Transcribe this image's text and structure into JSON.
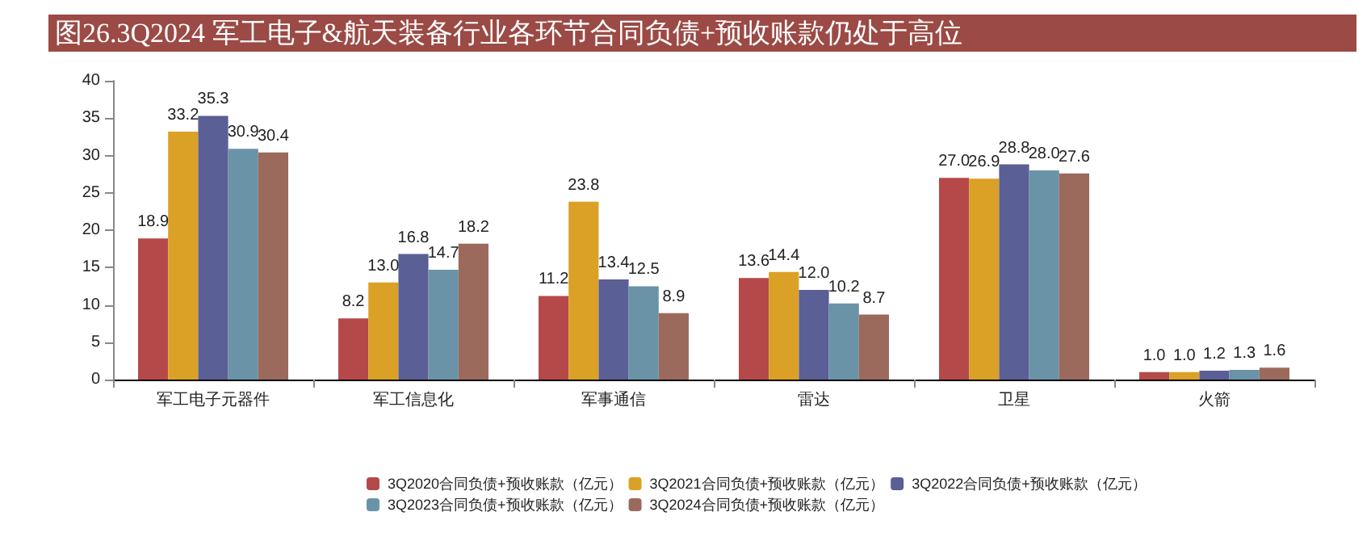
{
  "chart_data": {
    "type": "bar",
    "title": "图26.3Q2024 军工电子&航天装备行业各环节合同负债+预收账款仍处于高位",
    "categories": [
      "军工电子元器件",
      "军工信息化",
      "军事通信",
      "雷达",
      "卫星",
      "火箭"
    ],
    "series": [
      {
        "name": "3Q2020合同负债+预收账款（亿元）",
        "color": "#b5494a",
        "values": [
          18.9,
          8.2,
          11.2,
          13.6,
          27.0,
          1.0
        ],
        "value_labels": [
          "18.9",
          "8.2",
          "11.2",
          "13.6",
          "27.0",
          "1.0"
        ]
      },
      {
        "name": "3Q2021合同负债+预收账款（亿元）",
        "color": "#dba026",
        "values": [
          33.2,
          13.0,
          23.8,
          14.4,
          26.9,
          1.0
        ],
        "value_labels": [
          "33.2",
          "13.0",
          "23.8",
          "14.4",
          "26.9",
          "1.0"
        ]
      },
      {
        "name": "3Q2022合同负债+预收账款（亿元）",
        "color": "#5a5f95",
        "values": [
          35.3,
          16.8,
          13.4,
          12.0,
          28.8,
          1.2
        ],
        "value_labels": [
          "35.3",
          "16.8",
          "13.4",
          "12.0",
          "28.8",
          "1.2"
        ]
      },
      {
        "name": "3Q2023合同负债+预收账款（亿元）",
        "color": "#6a93a8",
        "values": [
          30.9,
          14.7,
          12.5,
          10.2,
          28.0,
          1.3
        ],
        "value_labels": [
          "30.9",
          "14.7",
          "12.5",
          "10.2",
          "28.0",
          "1.3"
        ]
      },
      {
        "name": "3Q2024合同负债+预收账款（亿元）",
        "color": "#9b6a5c",
        "values": [
          30.4,
          18.2,
          8.9,
          8.7,
          27.6,
          1.6
        ],
        "value_labels": [
          "30.4",
          "18.2",
          "8.9",
          "8.7",
          "27.6",
          "1.6"
        ]
      }
    ],
    "ylim": [
      0,
      40
    ],
    "yticks": [
      0,
      5,
      10,
      15,
      20,
      25,
      30,
      35,
      40
    ],
    "grid": false,
    "legend": "bottom"
  }
}
